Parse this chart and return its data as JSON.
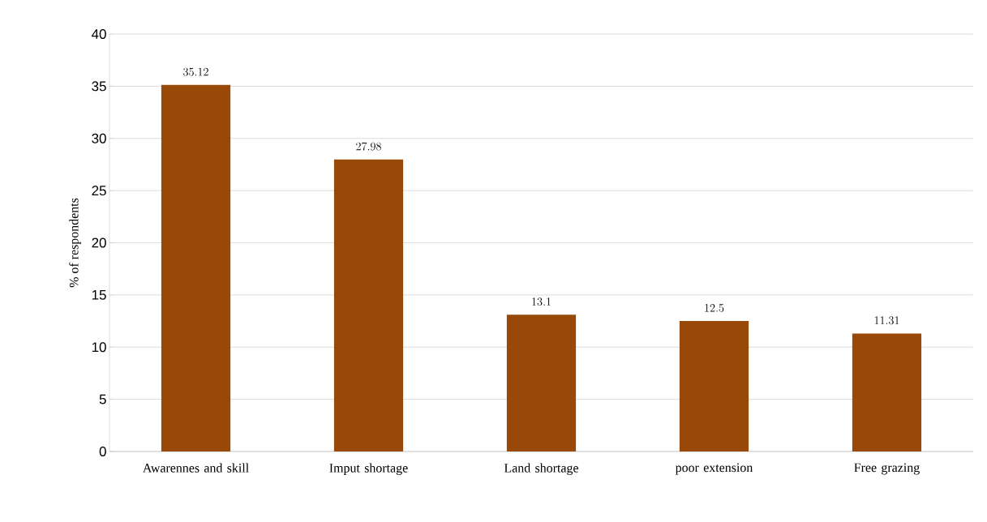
{
  "chart_data": {
    "type": "bar",
    "ylabel": "% of respondents",
    "categories": [
      "Awarennes and skill",
      "Imput shortage",
      "Land shortage",
      "poor extension",
      "Free grazing"
    ],
    "values": [
      35.12,
      27.98,
      13.1,
      12.5,
      11.31
    ],
    "color": "#984807",
    "ylim": [
      0,
      40
    ],
    "yticks": [
      0,
      5,
      10,
      15,
      20,
      25,
      30,
      35,
      40
    ],
    "grid": "y",
    "data_labels": true
  }
}
